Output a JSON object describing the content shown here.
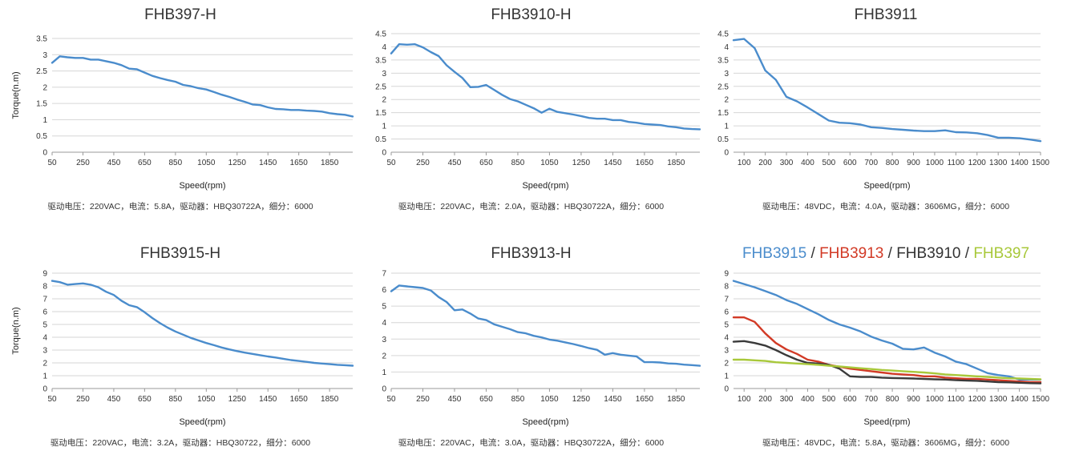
{
  "chart_data": [
    {
      "type": "line",
      "title": "FHB397-H",
      "xlabel": "Speed(rpm)",
      "ylabel": "Torque(n.m)",
      "caption": "驱动电压：220VAC，电流：5.8A，驱动器：HBQ30722A，细分：6000",
      "categories": [
        "50",
        "250",
        "450",
        "650",
        "850",
        "1050",
        "1250",
        "1450",
        "1650",
        "1850"
      ],
      "ylim": [
        0,
        3.5
      ],
      "yticks": [
        "0",
        "0.5",
        "1",
        "1.5",
        "2",
        "2.5",
        "3",
        "3.5"
      ],
      "grid": true,
      "series": [
        {
          "color": "#4a8ccc",
          "x": [
            50,
            100,
            150,
            200,
            250,
            300,
            350,
            400,
            450,
            500,
            550,
            600,
            650,
            700,
            750,
            800,
            850,
            900,
            950,
            1000,
            1050,
            1100,
            1150,
            1200,
            1250,
            1300,
            1350,
            1400,
            1450,
            1500,
            1550,
            1600,
            1650,
            1700,
            1750,
            1800,
            1850,
            1900,
            1950,
            2000
          ],
          "values": [
            2.75,
            2.95,
            2.92,
            2.9,
            2.9,
            2.85,
            2.85,
            2.8,
            2.75,
            2.68,
            2.57,
            2.55,
            2.45,
            2.35,
            2.28,
            2.22,
            2.17,
            2.07,
            2.03,
            1.97,
            1.93,
            1.85,
            1.77,
            1.7,
            1.62,
            1.55,
            1.47,
            1.45,
            1.38,
            1.33,
            1.32,
            1.3,
            1.3,
            1.28,
            1.27,
            1.25,
            1.2,
            1.17,
            1.15,
            1.1
          ]
        }
      ]
    },
    {
      "type": "line",
      "title": "FHB3910-H",
      "xlabel": "Speed(rpm)",
      "ylabel": "",
      "caption": "驱动电压：220VAC，电流：2.0A，驱动器：HBQ30722A，细分：6000",
      "categories": [
        "50",
        "250",
        "450",
        "650",
        "850",
        "1050",
        "1250",
        "1450",
        "1650",
        "1850"
      ],
      "ylim": [
        0,
        4.5
      ],
      "yticks": [
        "0",
        "0.5",
        "1",
        "1.5",
        "2",
        "2.5",
        "3",
        "3.5",
        "4",
        "4.5"
      ],
      "grid": true,
      "series": [
        {
          "color": "#4a8ccc",
          "x": [
            50,
            100,
            150,
            200,
            250,
            300,
            350,
            400,
            450,
            500,
            550,
            600,
            650,
            700,
            750,
            800,
            850,
            900,
            950,
            1000,
            1050,
            1100,
            1150,
            1200,
            1250,
            1300,
            1350,
            1400,
            1450,
            1500,
            1550,
            1600,
            1650,
            1700,
            1750,
            1800,
            1850,
            1900,
            1950,
            2000
          ],
          "values": [
            3.75,
            4.1,
            4.08,
            4.1,
            3.98,
            3.8,
            3.65,
            3.3,
            3.05,
            2.82,
            2.47,
            2.48,
            2.55,
            2.37,
            2.18,
            2.02,
            1.93,
            1.8,
            1.67,
            1.5,
            1.65,
            1.53,
            1.48,
            1.43,
            1.37,
            1.3,
            1.27,
            1.27,
            1.22,
            1.22,
            1.15,
            1.12,
            1.07,
            1.05,
            1.03,
            0.98,
            0.95,
            0.9,
            0.88,
            0.87
          ]
        }
      ]
    },
    {
      "type": "line",
      "title": "FHB3911",
      "xlabel": "Speed(rpm)",
      "ylabel": "",
      "caption": "驱动电压：48VDC，电流：4.0A，驱动器：3606MG，细分：6000",
      "categories": [
        "100",
        "200",
        "300",
        "400",
        "500",
        "600",
        "700",
        "800",
        "900",
        "1000",
        "1100",
        "1200",
        "1300",
        "1400",
        "1500"
      ],
      "ylim": [
        0,
        4.5
      ],
      "yticks": [
        "0",
        "0.5",
        "1",
        "1.5",
        "2",
        "2.5",
        "3",
        "3.5",
        "4",
        "4.5"
      ],
      "grid": true,
      "series": [
        {
          "color": "#4a8ccc",
          "x": [
            50,
            100,
            150,
            200,
            250,
            300,
            350,
            400,
            450,
            500,
            550,
            600,
            650,
            700,
            750,
            800,
            850,
            900,
            950,
            1000,
            1050,
            1100,
            1150,
            1200,
            1250,
            1300,
            1350,
            1400,
            1450,
            1500
          ],
          "values": [
            4.25,
            4.3,
            3.95,
            3.1,
            2.75,
            2.1,
            1.93,
            1.7,
            1.45,
            1.2,
            1.12,
            1.1,
            1.05,
            0.95,
            0.92,
            0.88,
            0.85,
            0.82,
            0.8,
            0.8,
            0.83,
            0.76,
            0.75,
            0.72,
            0.65,
            0.55,
            0.55,
            0.53,
            0.48,
            0.42
          ]
        }
      ]
    },
    {
      "type": "line",
      "title": "FHB3915-H",
      "xlabel": "Speed(rpm)",
      "ylabel": "Torque(n.m)",
      "caption": "驱动电压：220VAC，电流：3.2A，驱动器：HBQ30722，细分：6000",
      "categories": [
        "50",
        "250",
        "450",
        "650",
        "850",
        "1050",
        "1250",
        "1450",
        "1650",
        "1850"
      ],
      "ylim": [
        0,
        9
      ],
      "yticks": [
        "0",
        "1",
        "2",
        "3",
        "4",
        "5",
        "6",
        "7",
        "8",
        "9"
      ],
      "grid": true,
      "series": [
        {
          "color": "#4a8ccc",
          "x": [
            50,
            100,
            150,
            200,
            250,
            300,
            350,
            400,
            450,
            500,
            550,
            600,
            650,
            700,
            750,
            800,
            850,
            900,
            950,
            1000,
            1050,
            1100,
            1150,
            1200,
            1250,
            1300,
            1350,
            1400,
            1450,
            1500,
            1550,
            1600,
            1650,
            1700,
            1750,
            1800,
            1850,
            1900,
            1950,
            2000
          ],
          "values": [
            8.4,
            8.3,
            8.1,
            8.15,
            8.2,
            8.1,
            7.9,
            7.55,
            7.3,
            6.85,
            6.5,
            6.35,
            5.95,
            5.5,
            5.1,
            4.75,
            4.45,
            4.2,
            3.95,
            3.75,
            3.55,
            3.38,
            3.2,
            3.05,
            2.92,
            2.8,
            2.7,
            2.6,
            2.5,
            2.42,
            2.32,
            2.22,
            2.15,
            2.08,
            2.0,
            1.95,
            1.9,
            1.85,
            1.82,
            1.78
          ]
        }
      ]
    },
    {
      "type": "line",
      "title": "FHB3913-H",
      "xlabel": "Speed(rpm)",
      "ylabel": "",
      "caption": "驱动电压：220VAC，电流：3.0A，驱动器：HBQ30722A，细分：6000",
      "categories": [
        "50",
        "250",
        "450",
        "650",
        "850",
        "1050",
        "1250",
        "1450",
        "1650",
        "1850"
      ],
      "ylim": [
        0,
        7
      ],
      "yticks": [
        "0",
        "1",
        "2",
        "3",
        "4",
        "5",
        "6",
        "7"
      ],
      "grid": true,
      "series": [
        {
          "color": "#4a8ccc",
          "x": [
            50,
            100,
            150,
            200,
            250,
            300,
            350,
            400,
            450,
            500,
            550,
            600,
            650,
            700,
            750,
            800,
            850,
            900,
            950,
            1000,
            1050,
            1100,
            1150,
            1200,
            1250,
            1300,
            1350,
            1400,
            1450,
            1500,
            1550,
            1600,
            1650,
            1700,
            1750,
            1800,
            1850,
            1900,
            1950,
            2000
          ],
          "values": [
            5.9,
            6.25,
            6.2,
            6.15,
            6.1,
            5.95,
            5.55,
            5.25,
            4.75,
            4.8,
            4.55,
            4.25,
            4.15,
            3.9,
            3.75,
            3.6,
            3.42,
            3.35,
            3.2,
            3.1,
            2.97,
            2.9,
            2.8,
            2.7,
            2.58,
            2.45,
            2.35,
            2.05,
            2.15,
            2.05,
            2.0,
            1.95,
            1.6,
            1.6,
            1.58,
            1.52,
            1.5,
            1.45,
            1.42,
            1.38
          ]
        }
      ]
    },
    {
      "type": "line",
      "title_parts": [
        {
          "text": "FHB3915",
          "color": "#4a8ccc"
        },
        {
          "text": " / ",
          "color": "#333333"
        },
        {
          "text": "FHB3913",
          "color": "#d23a26"
        },
        {
          "text": " / ",
          "color": "#333333"
        },
        {
          "text": "FHB3910",
          "color": "#333333"
        },
        {
          "text": " / ",
          "color": "#333333"
        },
        {
          "text": "FHB397",
          "color": "#a8c83a"
        }
      ],
      "xlabel": "Speed(rpm)",
      "ylabel": "",
      "caption": "驱动电压：48VDC，电流：5.8A，驱动器：3606MG，细分：6000",
      "categories": [
        "100",
        "200",
        "300",
        "400",
        "500",
        "600",
        "700",
        "800",
        "900",
        "1000",
        "1100",
        "1200",
        "1300",
        "1400",
        "1500"
      ],
      "ylim": [
        0,
        9
      ],
      "yticks": [
        "0",
        "1",
        "2",
        "3",
        "4",
        "5",
        "6",
        "7",
        "8",
        "9"
      ],
      "grid": true,
      "series": [
        {
          "name": "FHB3915",
          "color": "#4a8ccc",
          "x": [
            50,
            100,
            150,
            200,
            250,
            300,
            350,
            400,
            450,
            500,
            550,
            600,
            650,
            700,
            750,
            800,
            850,
            900,
            950,
            1000,
            1050,
            1100,
            1150,
            1200,
            1250,
            1300,
            1350,
            1400,
            1450,
            1500
          ],
          "values": [
            8.4,
            8.15,
            7.9,
            7.6,
            7.3,
            6.9,
            6.6,
            6.2,
            5.8,
            5.35,
            5.0,
            4.75,
            4.45,
            4.05,
            3.75,
            3.5,
            3.1,
            3.05,
            3.2,
            2.8,
            2.5,
            2.1,
            1.9,
            1.55,
            1.2,
            1.05,
            0.95,
            0.7,
            0.7,
            0.7
          ]
        },
        {
          "name": "FHB3913",
          "color": "#d23a26",
          "x": [
            50,
            100,
            150,
            200,
            250,
            300,
            350,
            400,
            450,
            500,
            550,
            600,
            650,
            700,
            750,
            800,
            850,
            900,
            950,
            1000,
            1050,
            1100,
            1150,
            1200,
            1250,
            1300,
            1350,
            1400,
            1450,
            1500
          ],
          "values": [
            5.55,
            5.55,
            5.2,
            4.3,
            3.55,
            3.05,
            2.7,
            2.25,
            2.1,
            1.85,
            1.7,
            1.55,
            1.45,
            1.35,
            1.25,
            1.15,
            1.1,
            1.05,
            0.95,
            0.95,
            0.85,
            0.8,
            0.75,
            0.75,
            0.7,
            0.65,
            0.6,
            0.55,
            0.5,
            0.5
          ]
        },
        {
          "name": "FHB3910",
          "color": "#3a3a3a",
          "x": [
            50,
            100,
            150,
            200,
            250,
            300,
            350,
            400,
            450,
            500,
            550,
            600,
            650,
            700,
            750,
            800,
            850,
            900,
            950,
            1000,
            1050,
            1100,
            1150,
            1200,
            1250,
            1300,
            1350,
            1400,
            1450,
            1500
          ],
          "values": [
            3.65,
            3.7,
            3.55,
            3.35,
            3.0,
            2.6,
            2.25,
            2.0,
            1.95,
            1.85,
            1.55,
            0.95,
            0.9,
            0.9,
            0.85,
            0.82,
            0.8,
            0.78,
            0.75,
            0.72,
            0.7,
            0.65,
            0.62,
            0.6,
            0.55,
            0.5,
            0.48,
            0.45,
            0.42,
            0.4
          ]
        },
        {
          "name": "FHB397",
          "color": "#a8c83a",
          "x": [
            50,
            100,
            150,
            200,
            250,
            300,
            350,
            400,
            450,
            500,
            550,
            600,
            650,
            700,
            750,
            800,
            850,
            900,
            950,
            1000,
            1050,
            1100,
            1150,
            1200,
            1250,
            1300,
            1350,
            1400,
            1450,
            1500
          ],
          "values": [
            2.25,
            2.25,
            2.2,
            2.15,
            2.05,
            2.0,
            1.95,
            1.9,
            1.85,
            1.78,
            1.72,
            1.65,
            1.58,
            1.52,
            1.45,
            1.4,
            1.35,
            1.3,
            1.25,
            1.18,
            1.1,
            1.05,
            1.0,
            0.95,
            0.9,
            0.85,
            0.8,
            0.78,
            0.75,
            0.72
          ]
        }
      ]
    }
  ]
}
